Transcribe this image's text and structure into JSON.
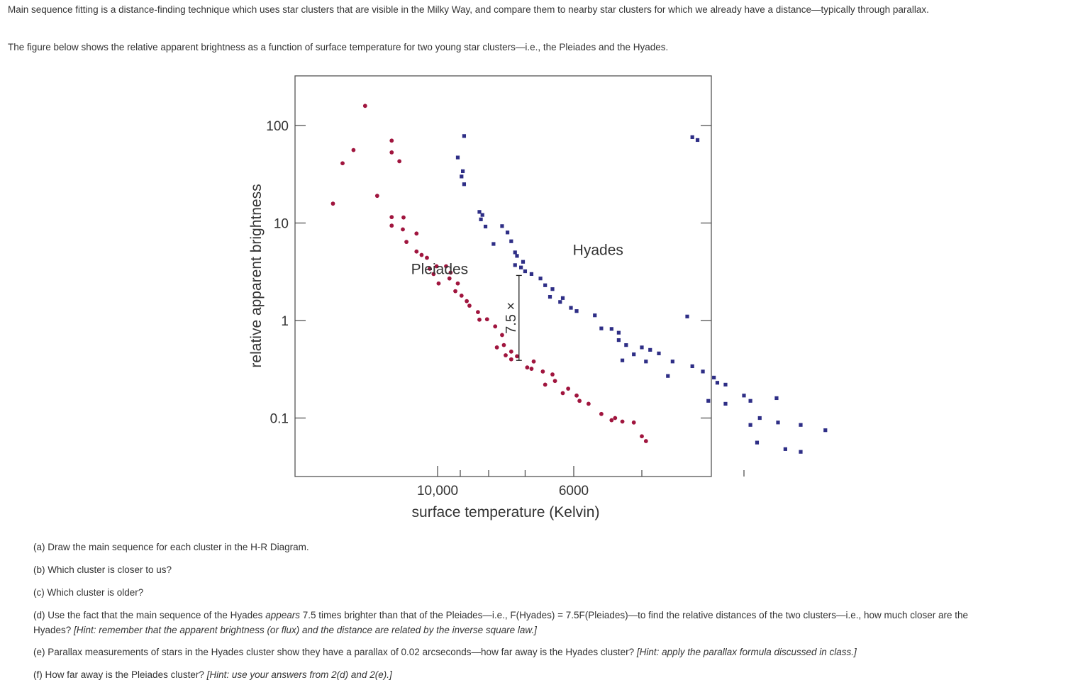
{
  "intro": {
    "p1": "Main sequence fitting is a distance-finding technique which uses star clusters that are visible in the Milky Way, and compare them to nearby star clusters for which we already have a distance—typically through parallax.",
    "p2": "The figure below shows the relative apparent brightness as a function of surface temperature for two young star clusters—i.e., the Pleiades and the Hyades."
  },
  "chart_data": {
    "type": "scatter",
    "title": "",
    "xlabel": "surface temperature (Kelvin)",
    "ylabel": "relative apparent brightness",
    "x_scale": "reciprocal (hot stars on the left)",
    "x_ticks": [
      {
        "label": "10,000",
        "value": 10000
      },
      {
        "label": "",
        "value": 9000
      },
      {
        "label": "",
        "value": 8000
      },
      {
        "label": "",
        "value": 7000
      },
      {
        "label": "6000",
        "value": 6000
      },
      {
        "label": "",
        "value": 5000
      },
      {
        "label": "",
        "value": 4000
      }
    ],
    "xlim": [
      21000,
      3800
    ],
    "y_scale": "log",
    "y_ticks": [
      {
        "label": "0.1",
        "value": 0.1
      },
      {
        "label": "1",
        "value": 1
      },
      {
        "label": "10",
        "value": 10
      },
      {
        "label": "100",
        "value": 100
      }
    ],
    "ylim": [
      0.04,
      480
    ],
    "grid": false,
    "legend": "none (series labelled directly on the plot)",
    "series": [
      {
        "name": "Pleiades",
        "color": "#a0153e",
        "marker": "circle",
        "label_at": [
          9900,
          3
        ],
        "points": [
          [
            20500,
            15.8
          ],
          [
            18700,
            41
          ],
          [
            17000,
            56
          ],
          [
            15500,
            159
          ],
          [
            14200,
            19
          ],
          [
            12900,
            70
          ],
          [
            12900,
            53
          ],
          [
            12300,
            43
          ],
          [
            12900,
            11.5
          ],
          [
            12900,
            9.4
          ],
          [
            12000,
            11.4
          ],
          [
            12050,
            8.6
          ],
          [
            11800,
            6.4
          ],
          [
            11150,
            7.8
          ],
          [
            11150,
            5.1
          ],
          [
            10550,
            4.4
          ],
          [
            10850,
            4.7
          ],
          [
            10400,
            3.4
          ],
          [
            10050,
            3.6
          ],
          [
            10200,
            3.0
          ],
          [
            9950,
            2.4
          ],
          [
            9600,
            3.6
          ],
          [
            9400,
            3.1
          ],
          [
            9450,
            2.7
          ],
          [
            9100,
            2.4
          ],
          [
            9200,
            2.0
          ],
          [
            8950,
            1.8
          ],
          [
            8750,
            1.58
          ],
          [
            8650,
            1.42
          ],
          [
            8350,
            1.22
          ],
          [
            8300,
            1.02
          ],
          [
            8050,
            1.03
          ],
          [
            7800,
            0.87
          ],
          [
            7600,
            0.71
          ],
          [
            7550,
            0.56
          ],
          [
            7750,
            0.53
          ],
          [
            7350,
            0.48
          ],
          [
            7500,
            0.44
          ],
          [
            7350,
            0.4
          ],
          [
            7200,
            0.43
          ],
          [
            6950,
            0.33
          ],
          [
            6850,
            0.32
          ],
          [
            6800,
            0.38
          ],
          [
            6600,
            0.3
          ],
          [
            6400,
            0.28
          ],
          [
            6350,
            0.24
          ],
          [
            6550,
            0.22
          ],
          [
            6100,
            0.2
          ],
          [
            6200,
            0.18
          ],
          [
            5950,
            0.17
          ],
          [
            5750,
            0.14
          ],
          [
            5900,
            0.15
          ],
          [
            5550,
            0.11
          ],
          [
            5400,
            0.095
          ],
          [
            5250,
            0.092
          ],
          [
            5100,
            0.09
          ],
          [
            5350,
            0.1
          ],
          [
            5000,
            0.065
          ],
          [
            4950,
            0.058
          ]
        ]
      },
      {
        "name": "Hyades",
        "color": "#2e2e86",
        "marker": "square",
        "label_at": [
          5600,
          4.7
        ],
        "points": [
          [
            8850,
            78
          ],
          [
            9100,
            47
          ],
          [
            8900,
            34
          ],
          [
            8950,
            30
          ],
          [
            8850,
            25
          ],
          [
            8300,
            13
          ],
          [
            8200,
            12.1
          ],
          [
            8250,
            10.9
          ],
          [
            8100,
            9.2
          ],
          [
            7600,
            9.3
          ],
          [
            7450,
            8.0
          ],
          [
            7850,
            6.1
          ],
          [
            7350,
            6.5
          ],
          [
            7250,
            5.0
          ],
          [
            7200,
            4.6
          ],
          [
            7050,
            4.0
          ],
          [
            7250,
            3.7
          ],
          [
            7100,
            3.5
          ],
          [
            7000,
            3.2
          ],
          [
            6850,
            3.0
          ],
          [
            6650,
            2.7
          ],
          [
            6550,
            2.3
          ],
          [
            6400,
            2.1
          ],
          [
            6450,
            1.75
          ],
          [
            6200,
            1.7
          ],
          [
            6250,
            1.55
          ],
          [
            6050,
            1.35
          ],
          [
            5950,
            1.25
          ],
          [
            5650,
            1.13
          ],
          [
            5550,
            0.83
          ],
          [
            5400,
            0.82
          ],
          [
            5300,
            0.75
          ],
          [
            5300,
            0.63
          ],
          [
            5200,
            0.56
          ],
          [
            5000,
            0.53
          ],
          [
            4900,
            0.5
          ],
          [
            5100,
            0.45
          ],
          [
            5250,
            0.39
          ],
          [
            4800,
            0.46
          ],
          [
            4650,
            0.38
          ],
          [
            4450,
            0.34
          ],
          [
            4350,
            0.3
          ],
          [
            4250,
            0.26
          ],
          [
            4150,
            0.22
          ],
          [
            4000,
            0.17
          ],
          [
            3950,
            0.15
          ],
          [
            4300,
            0.15
          ],
          [
            4150,
            0.14
          ],
          [
            3880,
            0.1
          ],
          [
            3950,
            0.085
          ],
          [
            3750,
            0.09
          ],
          [
            3600,
            0.085
          ],
          [
            3450,
            0.075
          ],
          [
            4500,
            1.1
          ],
          [
            4950,
            0.38
          ],
          [
            4700,
            0.27
          ],
          [
            3900,
            0.056
          ],
          [
            3700,
            0.048
          ],
          [
            3600,
            0.045
          ],
          [
            4450,
            76
          ],
          [
            4400,
            71
          ],
          [
            3760,
            0.16
          ],
          [
            4220,
            0.23
          ]
        ]
      }
    ],
    "annotation": {
      "text": "7.5 ×",
      "x": 7150,
      "y_range": [
        0.39,
        2.9
      ]
    }
  },
  "questions": {
    "a": "(a) Draw the main sequence for each cluster in the H-R Diagram.",
    "b": "(b) Which cluster is closer to us?",
    "c": "(c) Which cluster is older?",
    "d_1": "(d) Use the fact that the main sequence of the Hyades ",
    "d_emph": "appears",
    "d_2": " 7.5 times brighter than that of the Pleiades—i.e., F(Hyades) = 7.5F(Pleiades)—to find the relative distances of the two clusters—i.e., how much closer are the Hyades? ",
    "d_hint": "[Hint: remember that the apparent brightness (or flux) and the distance are related by the inverse square law.]",
    "e_1": "(e) Parallax measurements of stars in the Hyades cluster show they have a parallax of 0.02 arcseconds—how far away is the Hyades cluster? ",
    "e_hint": "[Hint: apply the parallax formula discussed in class.]",
    "f_1": "(f) How far away is the Pleiades cluster? ",
    "f_hint": "[Hint: use your answers from 2(d) and 2(e).]"
  }
}
